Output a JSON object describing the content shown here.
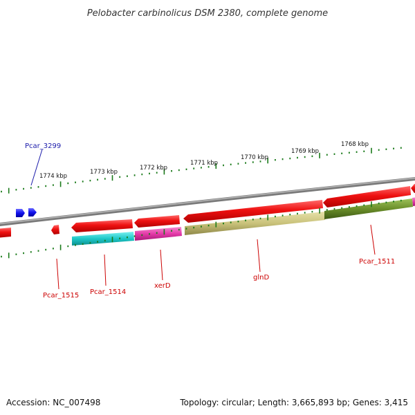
{
  "title": "Pelobacter carbinolicus DSM 2380, complete genome",
  "footer": {
    "accession": "Accession: NC_007498",
    "topology": "Topology: circular; Length: 3,665,893 bp; Genes: 3,415"
  },
  "ticks": [
    "1774 kbp",
    "1773 kbp",
    "1772 kbp",
    "1771 kbp",
    "1770 kbp",
    "1769 kbp",
    "1768 kbp"
  ],
  "gene_labels": {
    "pcar_3299": "Pcar_3299",
    "pcar_1515": "Pcar_1515",
    "pcar_1514": "Pcar_1514",
    "xerd": "xerD",
    "glnd": "glnD",
    "pcar_1511": "Pcar_1511"
  },
  "colors": {
    "forward_gene": "#ee1111",
    "reverse_gene": "#1111ee",
    "backbone": "#888888",
    "tick": "#1a7a1a",
    "cyan": "#1ec8c8",
    "magenta": "#e43aa8",
    "olive": "#c9c27a",
    "green": "#6a8e2a"
  }
}
